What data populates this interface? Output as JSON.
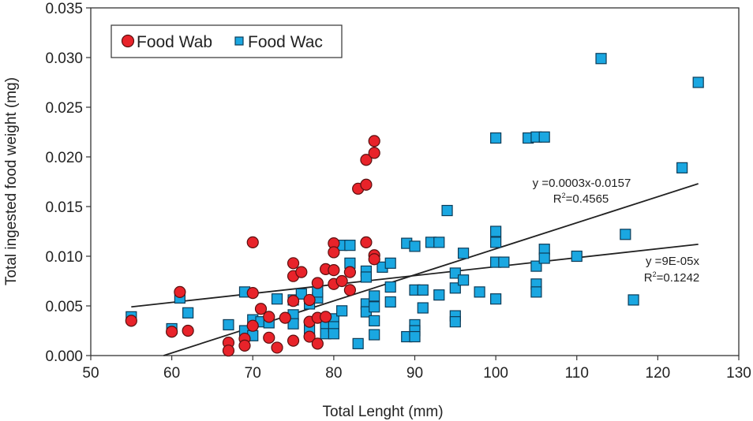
{
  "chart_data": {
    "type": "scatter",
    "title": "",
    "xlabel": "Total Lenght (mm)",
    "ylabel": "Total ingested food weight (mg)",
    "xlim": [
      50,
      130
    ],
    "ylim": [
      0,
      0.035
    ],
    "x_ticks": [
      "50",
      "60",
      "70",
      "80",
      "90",
      "100",
      "110",
      "120",
      "130"
    ],
    "y_ticks": [
      "0.000",
      "0.005",
      "0.010",
      "0.015",
      "0.020",
      "0.025",
      "0.030",
      "0.035"
    ],
    "grid": false,
    "legend_position": "top-left",
    "series": [
      {
        "name": "Food Wab",
        "marker": "circle",
        "color": "#e8232a",
        "points": [
          [
            55,
            0.0035
          ],
          [
            60,
            0.0024
          ],
          [
            61,
            0.0064
          ],
          [
            62,
            0.0025
          ],
          [
            67,
            0.0013
          ],
          [
            67,
            0.0005
          ],
          [
            69,
            0.0017
          ],
          [
            69,
            0.001
          ],
          [
            70,
            0.0114
          ],
          [
            70,
            0.0063
          ],
          [
            70,
            0.003
          ],
          [
            71,
            0.0047
          ],
          [
            72,
            0.0039
          ],
          [
            72,
            0.0018
          ],
          [
            73,
            0.0008
          ],
          [
            74,
            0.0038
          ],
          [
            75,
            0.0093
          ],
          [
            75,
            0.008
          ],
          [
            75,
            0.0055
          ],
          [
            75,
            0.0015
          ],
          [
            76,
            0.0084
          ],
          [
            77,
            0.0056
          ],
          [
            77,
            0.0034
          ],
          [
            77,
            0.0019
          ],
          [
            78,
            0.0073
          ],
          [
            78,
            0.0038
          ],
          [
            78,
            0.0012
          ],
          [
            79,
            0.0087
          ],
          [
            79,
            0.0039
          ],
          [
            80,
            0.0113
          ],
          [
            80,
            0.0104
          ],
          [
            80,
            0.0086
          ],
          [
            80,
            0.0072
          ],
          [
            81,
            0.0075
          ],
          [
            82,
            0.0084
          ],
          [
            82,
            0.0066
          ],
          [
            83,
            0.0168
          ],
          [
            84,
            0.0172
          ],
          [
            84,
            0.0197
          ],
          [
            84,
            0.0114
          ],
          [
            85,
            0.0216
          ],
          [
            85,
            0.0204
          ],
          [
            85,
            0.0101
          ],
          [
            85,
            0.0097
          ]
        ]
      },
      {
        "name": "Food Wac",
        "marker": "square",
        "color": "#1aa7e1",
        "points": [
          [
            55,
            0.0039
          ],
          [
            60,
            0.0027
          ],
          [
            61,
            0.0058
          ],
          [
            62,
            0.0043
          ],
          [
            67,
            0.0031
          ],
          [
            69,
            0.0064
          ],
          [
            69,
            0.0025
          ],
          [
            70,
            0.0036
          ],
          [
            70,
            0.002
          ],
          [
            71,
            0.0034
          ],
          [
            72,
            0.0033
          ],
          [
            73,
            0.0057
          ],
          [
            75,
            0.0056
          ],
          [
            75,
            0.0041
          ],
          [
            75,
            0.0032
          ],
          [
            76,
            0.0062
          ],
          [
            77,
            0.0052
          ],
          [
            77,
            0.0026
          ],
          [
            78,
            0.0058
          ],
          [
            78,
            0.0064
          ],
          [
            79,
            0.0031
          ],
          [
            79,
            0.0022
          ],
          [
            80,
            0.0037
          ],
          [
            80,
            0.0029
          ],
          [
            80,
            0.0022
          ],
          [
            81,
            0.0111
          ],
          [
            81,
            0.0045
          ],
          [
            82,
            0.0111
          ],
          [
            82,
            0.0093
          ],
          [
            83,
            0.0012
          ],
          [
            84,
            0.0085
          ],
          [
            84,
            0.0079
          ],
          [
            84,
            0.0052
          ],
          [
            84,
            0.0044
          ],
          [
            85,
            0.006
          ],
          [
            85,
            0.0049
          ],
          [
            85,
            0.0035
          ],
          [
            85,
            0.0021
          ],
          [
            86,
            0.0089
          ],
          [
            87,
            0.0093
          ],
          [
            87,
            0.0069
          ],
          [
            87,
            0.0054
          ],
          [
            89,
            0.0113
          ],
          [
            89,
            0.0019
          ],
          [
            90,
            0.011
          ],
          [
            90,
            0.0066
          ],
          [
            90,
            0.0031
          ],
          [
            90,
            0.0025
          ],
          [
            90,
            0.0019
          ],
          [
            91,
            0.0066
          ],
          [
            91,
            0.0048
          ],
          [
            92,
            0.0114
          ],
          [
            93,
            0.0114
          ],
          [
            93,
            0.0061
          ],
          [
            94,
            0.0146
          ],
          [
            95,
            0.0083
          ],
          [
            95,
            0.0068
          ],
          [
            95,
            0.004
          ],
          [
            95,
            0.0034
          ],
          [
            96,
            0.0103
          ],
          [
            96,
            0.0076
          ],
          [
            98,
            0.0064
          ],
          [
            100,
            0.0219
          ],
          [
            100,
            0.0125
          ],
          [
            100,
            0.0114
          ],
          [
            100,
            0.0094
          ],
          [
            100,
            0.0057
          ],
          [
            101,
            0.0094
          ],
          [
            104,
            0.0219
          ],
          [
            105,
            0.022
          ],
          [
            105,
            0.009
          ],
          [
            105,
            0.0072
          ],
          [
            105,
            0.0064
          ],
          [
            106,
            0.022
          ],
          [
            106,
            0.0107
          ],
          [
            106,
            0.0098
          ],
          [
            110,
            0.01
          ],
          [
            113,
            0.0299
          ],
          [
            116,
            0.0122
          ],
          [
            117,
            0.0056
          ],
          [
            123,
            0.0189
          ],
          [
            125,
            0.0275
          ]
        ]
      }
    ],
    "trendlines": [
      {
        "series": "Food Wac",
        "equation": "y =0.0003x-0.0157",
        "r2_label": "R",
        "r2_sup": "2",
        "r2_value": "=0.4565",
        "from": [
          59,
          0.0
        ],
        "to": [
          125,
          0.0173
        ]
      },
      {
        "series": "Food Wab",
        "equation": "y =9E-05x",
        "r2_label": "R",
        "r2_sup": "2",
        "r2_value": "=0.1242",
        "from": [
          55,
          0.0049
        ],
        "to": [
          125,
          0.0112
        ]
      }
    ]
  }
}
